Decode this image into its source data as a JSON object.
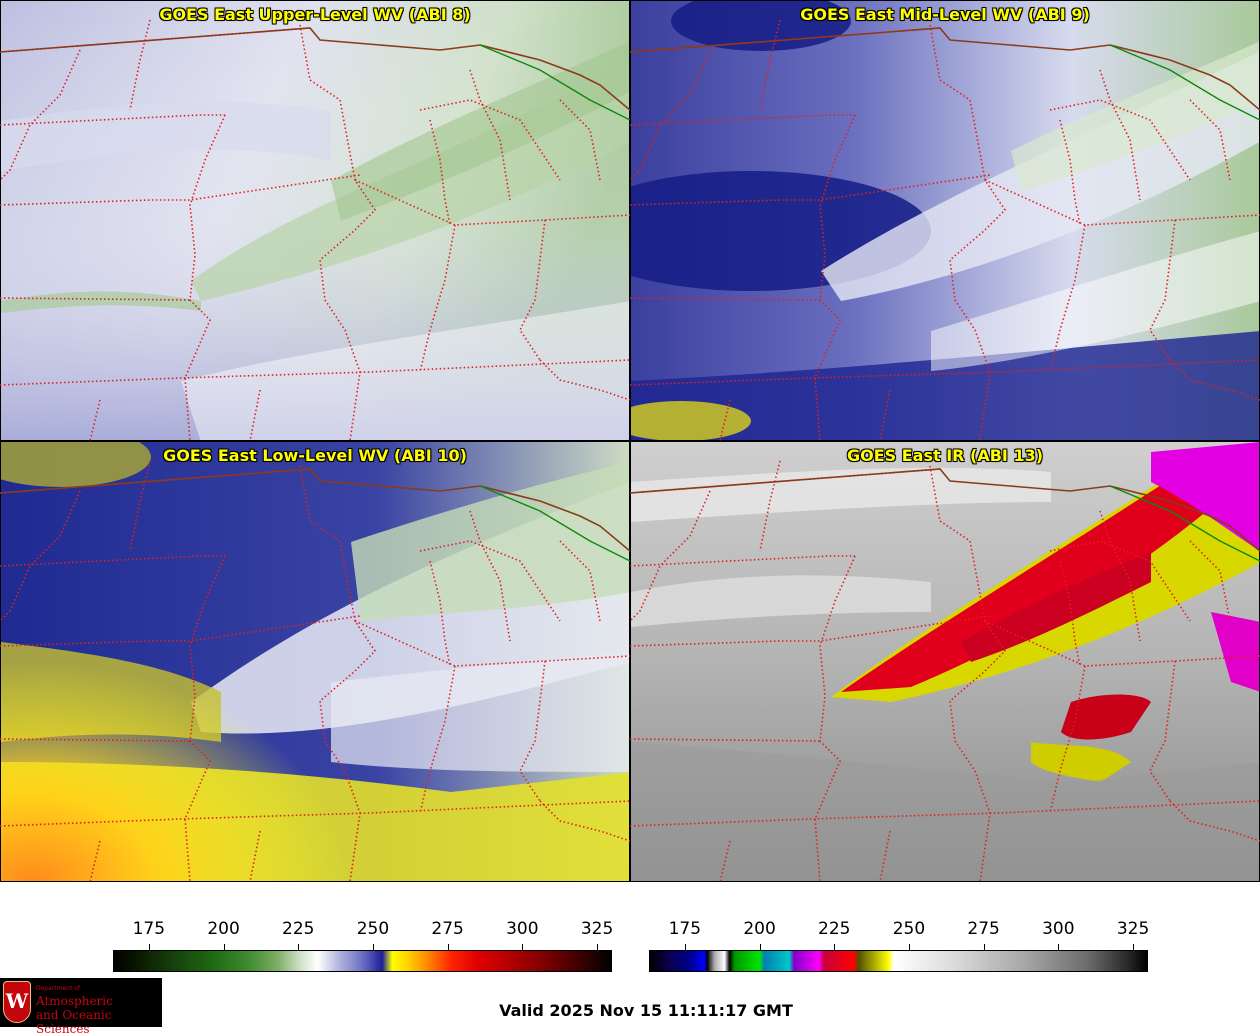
{
  "panels": [
    {
      "title": "GOES East Upper-Level WV (ABI 8)",
      "palette": "wv_upper"
    },
    {
      "title": "GOES East Mid-Level WV (ABI 9)",
      "palette": "wv_mid"
    },
    {
      "title": "GOES East Low-Level WV (ABI 10)",
      "palette": "wv_low"
    },
    {
      "title": "GOES East IR (ABI 13)",
      "palette": "ir"
    }
  ],
  "colorbars": [
    {
      "name": "water-vapor",
      "ticks": [
        "175",
        "200",
        "225",
        "250",
        "275",
        "300",
        "325"
      ],
      "range": [
        163,
        330
      ]
    },
    {
      "name": "infrared",
      "ticks": [
        "175",
        "200",
        "225",
        "250",
        "275",
        "300",
        "325"
      ],
      "range": [
        163,
        330
      ]
    }
  ],
  "valid_time": "Valid 2025 Nov 15 11:11:17 GMT",
  "logo": {
    "dept_line": "Department of",
    "name_line1": "Atmospheric",
    "name_line2": "and Oceanic Sciences",
    "crest_letter": "W"
  },
  "colors": {
    "title_text": "#ffff00",
    "state_border": "#e02020",
    "national_border": "#8b3a1a",
    "water_boundary": "#0a8a0a"
  }
}
